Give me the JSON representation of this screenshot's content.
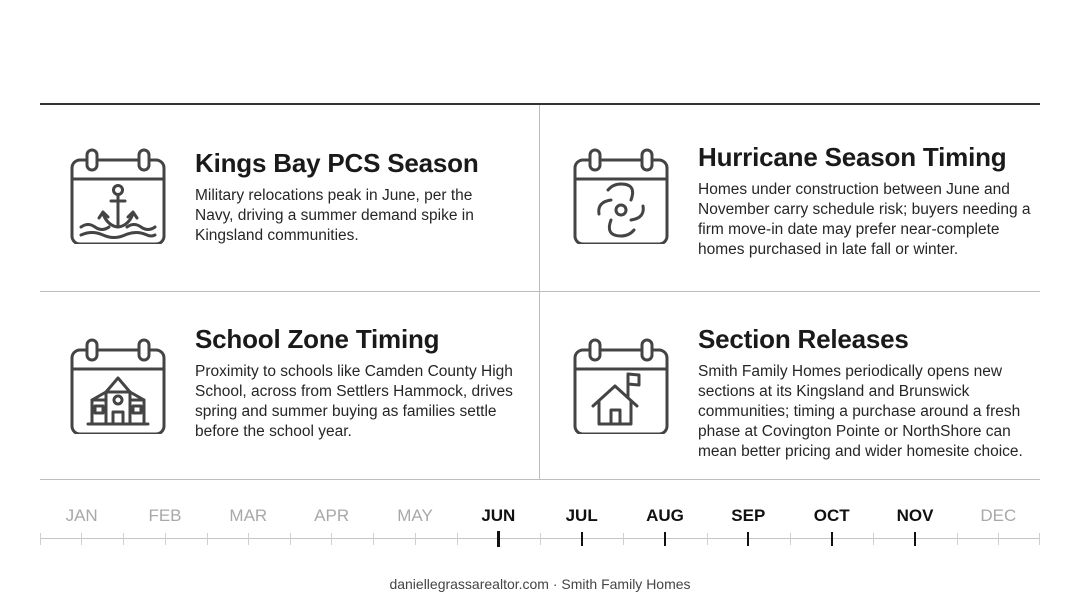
{
  "cards": [
    {
      "title": "Kings Bay PCS Season",
      "body": "Military relocations peak in June, per the Navy, driving a summer demand spike in Kingsland communities.",
      "icon": "calendar-anchor-icon"
    },
    {
      "title": "Hurricane Season Timing",
      "body": "Homes under construction between June and November carry schedule risk; buyers needing a firm move-in date may prefer near-complete homes purchased in late fall or winter.",
      "icon": "calendar-hurricane-icon"
    },
    {
      "title": "School Zone Timing",
      "body": "Proximity to schools like Camden County High School, across from Settlers Hammock, drives spring and summer buying as families settle before the school year.",
      "icon": "calendar-school-icon"
    },
    {
      "title": "Section Releases",
      "body": "Smith Family Homes periodically opens new sections at its Kingsland and Brunswick communities; timing a purchase around a fresh phase at Covington Pointe or NorthShore can mean better pricing and wider homesite choice.",
      "icon": "calendar-house-flag-icon"
    }
  ],
  "timeline": {
    "months": [
      "JAN",
      "FEB",
      "MAR",
      "APR",
      "MAY",
      "JUN",
      "JUL",
      "AUG",
      "SEP",
      "OCT",
      "NOV",
      "DEC"
    ],
    "highlighted": [
      "JUN",
      "JUL",
      "AUG",
      "SEP",
      "OCT",
      "NOV"
    ],
    "colors": {
      "highlight": "#111111",
      "muted": "#a8a8a8"
    }
  },
  "footer": "daniellegrassarealtor.com · Smith Family Homes"
}
